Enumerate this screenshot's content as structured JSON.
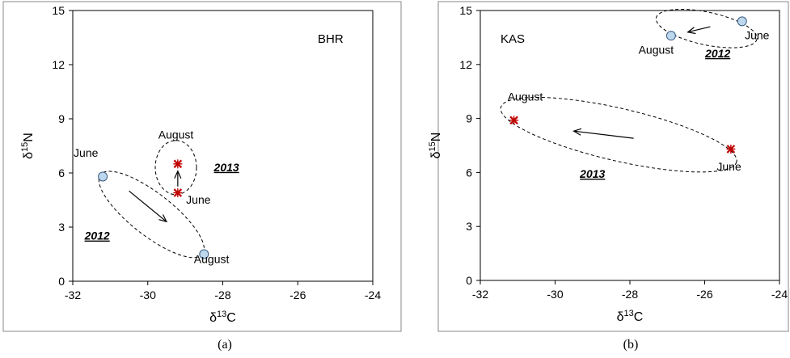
{
  "colors": {
    "circle_fill": "#bdd7ee",
    "circle_stroke": "#3a5a80",
    "cross": "#c00000",
    "frame": "#888888",
    "ink": "#000000"
  },
  "chart_data": [
    {
      "type": "scatter",
      "panel_caption": "(a)",
      "site_label": "BHR",
      "xlabel": "δ13C",
      "ylabel": "δ15N",
      "xlim": [
        -32,
        -24
      ],
      "ylim": [
        0,
        15
      ],
      "xticks": [
        -32,
        -30,
        -28,
        -26,
        -24
      ],
      "yticks": [
        0,
        3,
        6,
        9,
        12,
        15
      ],
      "grid": false,
      "series": [
        {
          "year": "2012",
          "marker": "circle",
          "points": [
            {
              "x": -31.2,
              "y": 5.8,
              "label": "June"
            },
            {
              "x": -28.5,
              "y": 1.5,
              "label": "August"
            }
          ],
          "ellipse": {
            "cx": -29.9,
            "cy": 3.7,
            "rx": 2.05,
            "ry": 0.78,
            "angle_deg": 38
          },
          "arrow": {
            "from": [
              -30.5,
              5.0
            ],
            "to": [
              -29.5,
              3.3
            ]
          }
        },
        {
          "year": "2013",
          "marker": "cross",
          "points": [
            {
              "x": -29.2,
              "y": 6.5,
              "label": "August"
            },
            {
              "x": -29.2,
              "y": 4.9,
              "label": "June"
            }
          ],
          "ellipse": {
            "cx": -29.25,
            "cy": 6.3,
            "rx": 0.55,
            "ry": 1.5,
            "angle_deg": 0
          },
          "arrow": {
            "from": [
              -29.2,
              5.25
            ],
            "to": [
              -29.2,
              6.1
            ]
          }
        }
      ],
      "labels": [
        {
          "text": "June",
          "x": -31.65,
          "y": 6.9
        },
        {
          "text": "August",
          "x": -28.3,
          "y": 1.0
        },
        {
          "text": "August",
          "x": -29.25,
          "y": 7.9
        },
        {
          "text": "June",
          "x": -28.65,
          "y": 4.3
        },
        {
          "text": "2013",
          "x": -27.9,
          "y": 6.1,
          "style": "year"
        },
        {
          "text": "2012",
          "x": -31.35,
          "y": 2.3,
          "style": "year"
        }
      ]
    },
    {
      "type": "scatter",
      "panel_caption": "(b)",
      "site_label": "KAS",
      "xlabel": "δ13C",
      "ylabel": "δ15N",
      "xlim": [
        -32,
        -24
      ],
      "ylim": [
        0,
        15
      ],
      "xticks": [
        -32,
        -30,
        -28,
        -26,
        -24
      ],
      "yticks": [
        0,
        3,
        6,
        9,
        12,
        15
      ],
      "grid": false,
      "series": [
        {
          "year": "2012",
          "marker": "circle",
          "points": [
            {
              "x": -26.9,
              "y": 13.6,
              "label": "August"
            },
            {
              "x": -25.0,
              "y": 14.4,
              "label": "June"
            }
          ],
          "ellipse": {
            "cx": -25.95,
            "cy": 14.0,
            "rx": 1.4,
            "ry": 0.85,
            "angle_deg": 12
          },
          "arrow": {
            "from": [
              -25.85,
              14.1
            ],
            "to": [
              -26.45,
              13.8
            ]
          }
        },
        {
          "year": "2013",
          "marker": "cross",
          "points": [
            {
              "x": -31.1,
              "y": 8.9,
              "label": "August"
            },
            {
              "x": -25.3,
              "y": 7.3,
              "label": "June"
            }
          ],
          "ellipse": {
            "cx": -28.3,
            "cy": 8.1,
            "rx": 3.3,
            "ry": 1.35,
            "angle_deg": 13
          },
          "arrow": {
            "from": [
              -27.9,
              7.9
            ],
            "to": [
              -29.5,
              8.3
            ]
          }
        }
      ],
      "labels": [
        {
          "text": "August",
          "x": -27.3,
          "y": 12.6
        },
        {
          "text": "June",
          "x": -24.6,
          "y": 13.4
        },
        {
          "text": "2012",
          "x": -25.65,
          "y": 12.4,
          "style": "year"
        },
        {
          "text": "August",
          "x": -30.8,
          "y": 10.0
        },
        {
          "text": "June",
          "x": -25.35,
          "y": 6.1
        },
        {
          "text": "2013",
          "x": -29.0,
          "y": 5.7,
          "style": "year"
        }
      ]
    }
  ]
}
